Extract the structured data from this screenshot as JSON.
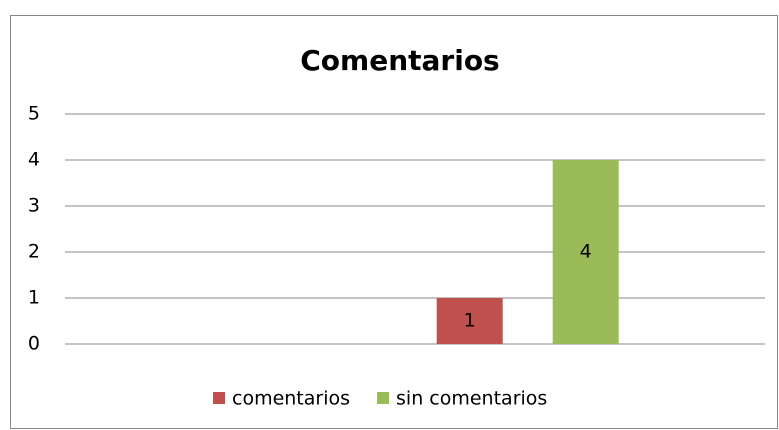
{
  "chart_data": {
    "type": "bar",
    "title": "Comentarios",
    "categories": [
      null
    ],
    "series": [
      {
        "name": "comentarios",
        "color": "#c0504d",
        "values": [
          1
        ]
      },
      {
        "name": "sin comentarios",
        "color": "#9bbb59",
        "values": [
          4
        ]
      }
    ],
    "ylim": [
      0,
      5
    ],
    "yticks": [
      0,
      1,
      2,
      3,
      4,
      5
    ],
    "grid": true,
    "legend": "bottom",
    "data_labels": true
  }
}
